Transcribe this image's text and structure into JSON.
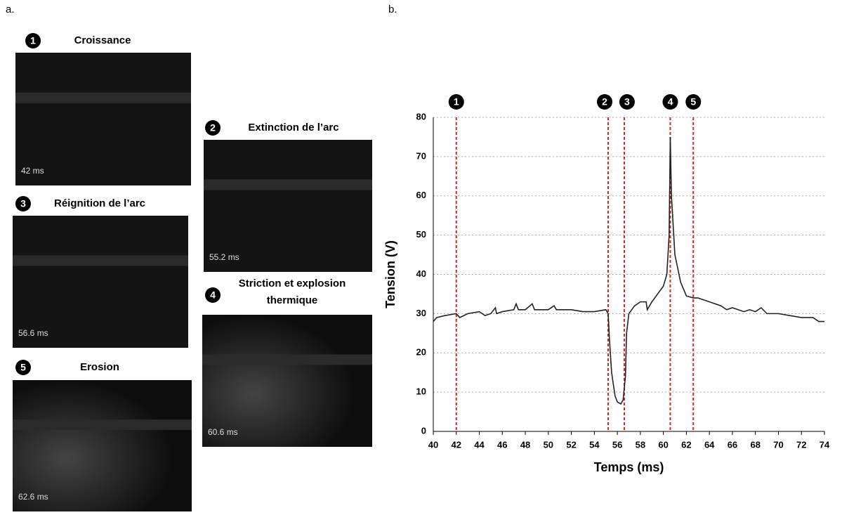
{
  "panel_labels": {
    "a": "a.",
    "b": "b."
  },
  "frames": [
    {
      "number": "1",
      "title": [
        "Croissance"
      ],
      "time": "42 ms"
    },
    {
      "number": "2",
      "title": [
        "Extinction de l’arc"
      ],
      "time": "55.2 ms"
    },
    {
      "number": "3",
      "title": [
        "Réignition de l’arc"
      ],
      "time": "56.6 ms"
    },
    {
      "number": "4",
      "title": [
        "Striction et explosion",
        "thermique"
      ],
      "time": "60.6 ms"
    },
    {
      "number": "5",
      "title": [
        "Erosion"
      ],
      "time": "62.6 ms"
    }
  ],
  "chart_data": {
    "type": "line",
    "xlabel": "Temps (ms)",
    "ylabel": "Tension (V)",
    "x": [
      40,
      40.3,
      41,
      42,
      42.3,
      43,
      44,
      44.5,
      45,
      45.4,
      45.5,
      46,
      47,
      47.2,
      47.4,
      48,
      48.6,
      48.8,
      50,
      50.5,
      50.7,
      52,
      53,
      54,
      55,
      55.2,
      55.3,
      55.5,
      55.8,
      56,
      56.3,
      56.5,
      56.7,
      56.8,
      57,
      57.5,
      58,
      58.5,
      58.6,
      59,
      59.5,
      60,
      60.3,
      60.5,
      60.6,
      60.7,
      61,
      61.5,
      62,
      62.6,
      63,
      64,
      65,
      65.5,
      66,
      67,
      67.5,
      68,
      68.5,
      69,
      70,
      71,
      72,
      73,
      73.5,
      74
    ],
    "series": [
      {
        "color": "#222222",
        "values": [
          28,
          29,
          29.5,
          30,
          29,
          30,
          30.5,
          29.5,
          30,
          31.5,
          30,
          30.5,
          31,
          32.5,
          31,
          31,
          32.5,
          31,
          31,
          32,
          31,
          31,
          30.5,
          30.5,
          31,
          30,
          24,
          15,
          9,
          7.5,
          7,
          8,
          14,
          25,
          30,
          32,
          33,
          33,
          31,
          33,
          35,
          37,
          40,
          50,
          75,
          60,
          45,
          38,
          34.5,
          34,
          34,
          33,
          32,
          31,
          31.5,
          30.5,
          31,
          30.5,
          31.5,
          30,
          30,
          29.5,
          29,
          29,
          28,
          28
        ]
      }
    ],
    "markers": [
      {
        "x": 42,
        "label": "1"
      },
      {
        "x": 55.2,
        "label": "2"
      },
      {
        "x": 56.6,
        "label": "3"
      },
      {
        "x": 60.6,
        "label": "4"
      },
      {
        "x": 62.6,
        "label": "5"
      }
    ],
    "marker_color": "#e02020",
    "xlim": [
      40,
      74
    ],
    "xticks": [
      40,
      42,
      44,
      46,
      48,
      50,
      52,
      54,
      56,
      58,
      60,
      62,
      64,
      66,
      68,
      70,
      72,
      74
    ],
    "ylim": [
      0,
      80
    ],
    "yticks": [
      0,
      10,
      20,
      30,
      40,
      50,
      60,
      70,
      80
    ],
    "grid": true
  }
}
